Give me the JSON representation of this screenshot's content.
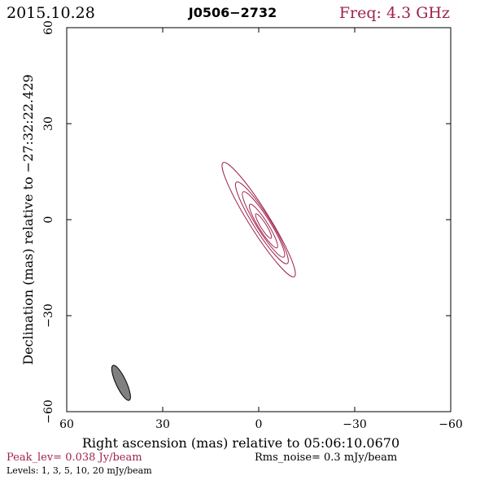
{
  "header": {
    "date": "2015.10.28",
    "source": "J0506−2732",
    "freq": "Freq: 4.3 GHz"
  },
  "footer": {
    "peak": "Peak_lev=  0.038 Jy/beam",
    "rms": "Rms_noise=   0.3 mJy/beam",
    "levels": "Levels:   1,   3,   5,  10,  20 mJy/beam"
  },
  "colors": {
    "contour": "#a0224a",
    "beam_fill": "#808080",
    "axis": "#000000"
  },
  "chart_data": {
    "type": "contour",
    "xlabel": "Right ascension (mas) relative to 05:06:10.0670",
    "ylabel": "Declination (mas) relative to −27:32:22.429",
    "xlim": [
      60,
      -60
    ],
    "ylim": [
      -60,
      60
    ],
    "x_ticks": [
      60,
      30,
      0,
      -30,
      -60
    ],
    "y_ticks": [
      -60,
      -30,
      0,
      30,
      60
    ],
    "x_tick_labels": [
      "60",
      "30",
      "0",
      "−30",
      "−60"
    ],
    "y_tick_labels": [
      "−60",
      "−30",
      "0",
      "30",
      "60"
    ],
    "contour_levels_mJy": [
      1,
      3,
      5,
      10,
      20
    ],
    "contours": [
      {
        "level": 1,
        "center": [
          0,
          0
        ],
        "semi_major": 21,
        "semi_minor": 3.2,
        "pa_deg": -32
      },
      {
        "level": 3,
        "center": [
          -1,
          -1
        ],
        "semi_major": 15,
        "semi_minor": 2.6,
        "pa_deg": -32
      },
      {
        "level": 5,
        "center": [
          -1.5,
          -1.5
        ],
        "semi_major": 12,
        "semi_minor": 2.1,
        "pa_deg": -32
      },
      {
        "level": 10,
        "center": [
          -1.5,
          -2
        ],
        "semi_major": 8,
        "semi_minor": 1.5,
        "pa_deg": -32
      },
      {
        "level": 20,
        "center": [
          -1.5,
          -2
        ],
        "semi_major": 4.5,
        "semi_minor": 0.9,
        "pa_deg": -32
      }
    ],
    "beam": {
      "center": [
        43,
        -51
      ],
      "semi_major": 6,
      "semi_minor": 1.6,
      "pa_deg": -25
    }
  }
}
